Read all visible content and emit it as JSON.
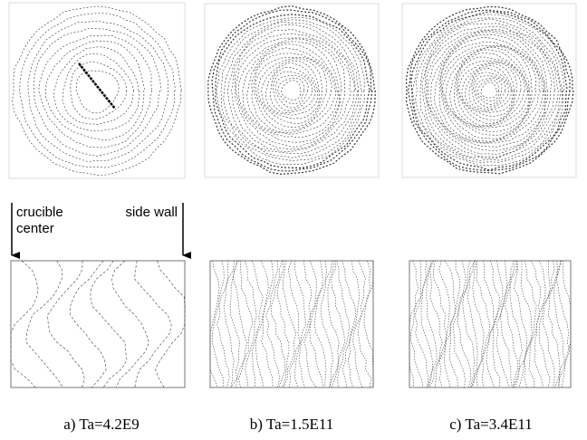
{
  "panels": [
    {
      "caption": "a) Ta=4.2E9"
    },
    {
      "caption": "b) Ta=1.5E11"
    },
    {
      "caption": "c) Ta=3.4E11"
    }
  ],
  "annotations": {
    "left": [
      "crucible",
      "center"
    ],
    "right": "side wall"
  }
}
